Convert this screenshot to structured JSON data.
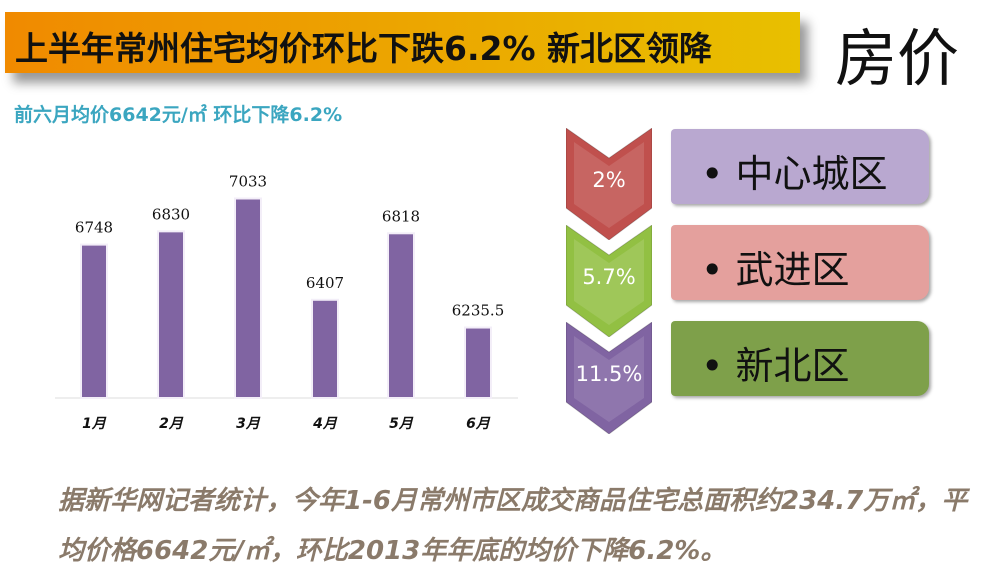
{
  "header": {
    "title": "上半年常州住宅均价环比下跌6.2% 新北区领降",
    "corner_label": "房价"
  },
  "subtitle": "前六月均价6642元/㎡ 环比下降6.2%",
  "chart_data": {
    "type": "bar",
    "categories": [
      "1月",
      "2月",
      "3月",
      "4月",
      "5月",
      "6月"
    ],
    "values": [
      6748,
      6830,
      7033,
      6407,
      6818,
      6235.5
    ],
    "value_labels": [
      "6748",
      "6830",
      "7033",
      "6407",
      "6818",
      "6235.5"
    ],
    "ylim": [
      5800,
      7100
    ],
    "grid": false,
    "bar_color": "#8064a2"
  },
  "districts": [
    {
      "change": "2%",
      "name": "• 中心城区",
      "arrow_color": "#c0504d",
      "box_color": "#b9a8d0"
    },
    {
      "change": "5.7%",
      "name": "• 武进区",
      "arrow_color": "#92c043",
      "box_color": "#e4a09d"
    },
    {
      "change": "11.5%",
      "name": "• 新北区",
      "arrow_color": "#8064a2",
      "box_color": "#7ea04a"
    }
  ],
  "footer": "据新华网记者统计，今年1-6月常州市区成交商品住宅总面积约234.7万㎡，平均价格6642元/㎡，环比2013年年底的均价下降6.2%。"
}
